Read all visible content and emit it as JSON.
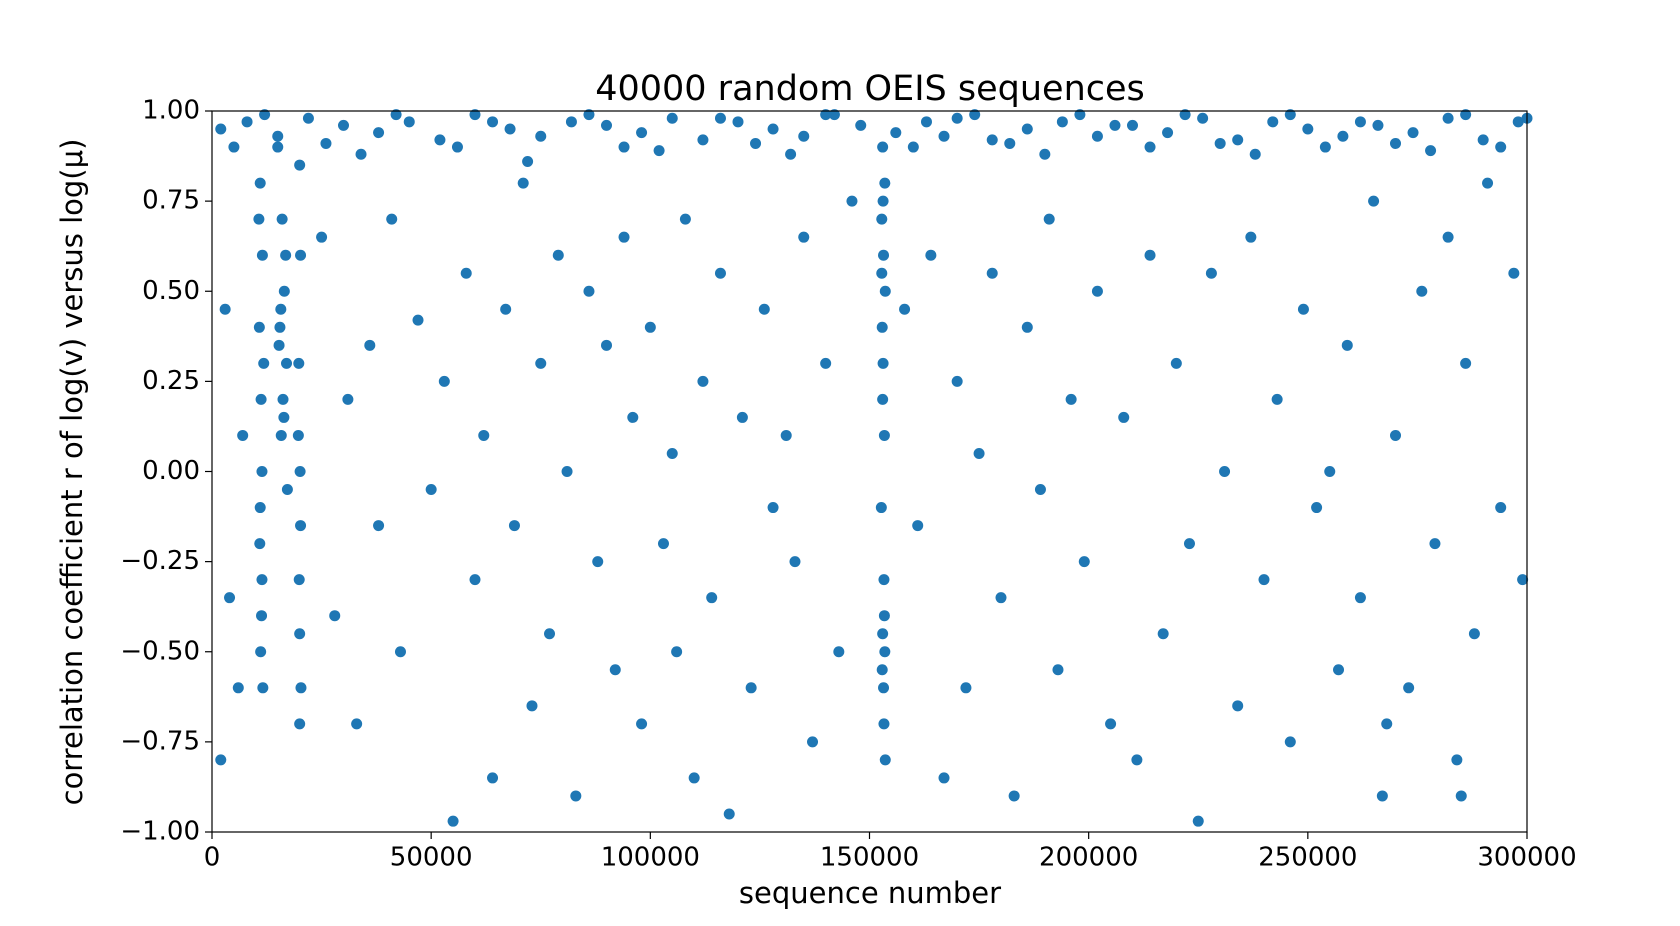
{
  "chart_data": {
    "type": "scatter",
    "title": "40000 random OEIS sequences",
    "x_label": "sequence number",
    "y_label": "correlation coefficient r of log(v) versus log(μ)",
    "color": "#1f77b4",
    "xlim": [
      0,
      300000
    ],
    "xticks": [
      0,
      50000,
      100000,
      150000,
      200000,
      250000,
      300000
    ],
    "ylim": [
      -1,
      1
    ],
    "yticks": [
      {
        "value": -1,
        "label": "−1.00"
      },
      {
        "value": -0.75,
        "label": "−0.75"
      },
      {
        "value": -0.5,
        "label": "−0.50"
      },
      {
        "value": -0.25,
        "label": "−0.25"
      },
      {
        "value": 0,
        "label": "0.00"
      },
      {
        "value": 0.25,
        "label": "0.25"
      },
      {
        "value": 0.5,
        "label": "0.50"
      },
      {
        "value": 0.75,
        "label": "0.75"
      },
      {
        "value": 1,
        "label": "1.00"
      }
    ],
    "x": [
      2000,
      8000,
      15000,
      22000,
      30000,
      38000,
      45000,
      52000,
      60000,
      68000,
      75000,
      82000,
      90000,
      98000,
      105000,
      112000,
      120000,
      128000,
      135000,
      142000,
      148000,
      156000,
      163000,
      170000,
      178000,
      186000,
      194000,
      202000,
      210000,
      218000,
      226000,
      234000,
      242000,
      250000,
      258000,
      266000,
      274000,
      282000,
      290000,
      298000,
      5000,
      12000,
      26000,
      34000,
      42000,
      56000,
      64000,
      72000,
      86000,
      94000,
      102000,
      116000,
      124000,
      132000,
      140000,
      160000,
      167000,
      174000,
      182000,
      190000,
      198000,
      206000,
      214000,
      222000,
      230000,
      238000,
      246000,
      254000,
      262000,
      270000,
      278000,
      286000,
      294000,
      300000,
      11000,
      11500,
      10800,
      11200,
      11400,
      10900,
      11300,
      11100,
      11600,
      10700,
      11800,
      11000,
      11400,
      15000,
      16000,
      16500,
      15500,
      17000,
      16200,
      15800,
      16800,
      15300,
      16400,
      17200,
      15700,
      20000,
      20200,
      19800,
      20100,
      19900,
      20300,
      20000,
      19700,
      20200,
      20000,
      153000,
      153500,
      152800,
      153200,
      153600,
      152900,
      153100,
      153400,
      152700,
      153300,
      153000,
      153500,
      152900,
      153200,
      153600,
      153100,
      152800,
      153400,
      153000,
      153300,
      3000,
      4000,
      6000,
      7000,
      2000,
      25000,
      28000,
      31000,
      33000,
      36000,
      38000,
      41000,
      43000,
      47000,
      50000,
      53000,
      55000,
      58000,
      60000,
      62000,
      64000,
      67000,
      69000,
      71000,
      73000,
      75000,
      77000,
      79000,
      81000,
      83000,
      86000,
      88000,
      90000,
      92000,
      94000,
      96000,
      98000,
      100000,
      103000,
      105000,
      106000,
      108000,
      110000,
      112000,
      114000,
      116000,
      118000,
      121000,
      123000,
      126000,
      128000,
      131000,
      133000,
      135000,
      137000,
      140000,
      143000,
      146000,
      158000,
      161000,
      164000,
      167000,
      170000,
      172000,
      175000,
      178000,
      180000,
      183000,
      186000,
      189000,
      191000,
      193000,
      196000,
      199000,
      202000,
      205000,
      208000,
      211000,
      214000,
      217000,
      220000,
      223000,
      225000,
      228000,
      231000,
      234000,
      237000,
      240000,
      243000,
      246000,
      249000,
      252000,
      255000,
      257000,
      259000,
      262000,
      265000,
      267000,
      270000,
      273000,
      276000,
      279000,
      282000,
      284000,
      286000,
      288000,
      291000,
      294000,
      297000,
      299000,
      285000,
      268000
    ],
    "values": [
      0.95,
      0.97,
      0.93,
      0.98,
      0.96,
      0.94,
      0.97,
      0.92,
      0.99,
      0.95,
      0.93,
      0.97,
      0.96,
      0.94,
      0.98,
      0.92,
      0.97,
      0.95,
      0.93,
      0.99,
      0.96,
      0.94,
      0.97,
      0.98,
      0.92,
      0.95,
      0.97,
      0.93,
      0.96,
      0.94,
      0.98,
      0.92,
      0.97,
      0.95,
      0.93,
      0.96,
      0.94,
      0.98,
      0.92,
      0.97,
      0.9,
      0.99,
      0.91,
      0.88,
      0.99,
      0.9,
      0.97,
      0.86,
      0.99,
      0.9,
      0.89,
      0.98,
      0.91,
      0.88,
      0.99,
      0.9,
      0.93,
      0.99,
      0.91,
      0.88,
      0.99,
      0.96,
      0.9,
      0.99,
      0.91,
      0.88,
      0.99,
      0.9,
      0.97,
      0.91,
      0.89,
      0.99,
      0.9,
      0.98,
      0.8,
      0.6,
      0.4,
      0.2,
      0.0,
      -0.2,
      -0.4,
      -0.5,
      -0.6,
      0.7,
      0.3,
      -0.1,
      -0.3,
      0.9,
      0.7,
      0.5,
      0.4,
      0.3,
      0.2,
      0.1,
      0.6,
      0.35,
      0.15,
      -0.05,
      0.45,
      0.85,
      0.6,
      0.3,
      0.0,
      -0.3,
      -0.6,
      -0.7,
      0.1,
      -0.15,
      -0.45,
      0.9,
      0.8,
      0.7,
      0.6,
      0.5,
      0.4,
      0.3,
      0.1,
      -0.1,
      -0.3,
      -0.45,
      -0.5,
      -0.55,
      -0.6,
      -0.8,
      0.75,
      0.55,
      -0.4,
      0.2,
      -0.7,
      0.45,
      -0.35,
      -0.6,
      0.1,
      -0.8,
      0.65,
      -0.4,
      0.2,
      -0.7,
      0.35,
      -0.15,
      0.7,
      -0.5,
      0.42,
      -0.05,
      0.25,
      -0.97,
      0.55,
      -0.3,
      0.1,
      -0.85,
      0.45,
      -0.15,
      0.8,
      -0.65,
      0.3,
      -0.45,
      0.6,
      0.0,
      -0.9,
      0.5,
      -0.25,
      0.35,
      -0.55,
      0.65,
      0.15,
      -0.7,
      0.4,
      -0.2,
      0.05,
      -0.5,
      0.7,
      -0.85,
      0.25,
      -0.35,
      0.55,
      -0.95,
      0.15,
      -0.6,
      0.45,
      -0.1,
      0.1,
      -0.25,
      0.65,
      -0.75,
      0.3,
      -0.5,
      0.75,
      0.45,
      -0.15,
      0.6,
      -0.85,
      0.25,
      -0.6,
      0.05,
      0.55,
      -0.35,
      -0.9,
      0.4,
      -0.05,
      0.7,
      -0.55,
      0.2,
      -0.25,
      0.5,
      -0.7,
      0.15,
      -0.8,
      0.6,
      -0.45,
      0.3,
      -0.2,
      -0.97,
      0.55,
      0.0,
      -0.65,
      0.65,
      -0.3,
      0.2,
      -0.75,
      0.45,
      -0.1,
      0.0,
      -0.55,
      0.35,
      -0.35,
      0.75,
      -0.9,
      0.1,
      -0.6,
      0.5,
      -0.2,
      0.65,
      -0.8,
      0.3,
      -0.45,
      0.8,
      -0.1,
      0.55,
      -0.3,
      -0.9,
      -0.7
    ]
  }
}
